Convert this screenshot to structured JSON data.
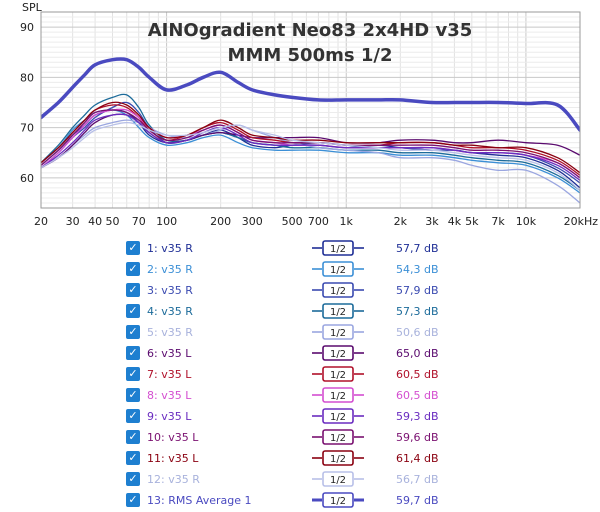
{
  "chart_data": {
    "type": "line",
    "title": "AINOgradient Neo83 2x4HD v35",
    "subtitle": "MMM 500ms 1/2",
    "ylabel": "SPL",
    "xlabel": "",
    "x_scale": "log",
    "xlim": [
      20,
      20000
    ],
    "ylim": [
      54,
      93
    ],
    "grid": true,
    "x_ticks": [
      {
        "v": 20,
        "t": "20"
      },
      {
        "v": 30,
        "t": "30"
      },
      {
        "v": 40,
        "t": "40"
      },
      {
        "v": 50,
        "t": "50"
      },
      {
        "v": 70,
        "t": "70"
      },
      {
        "v": 100,
        "t": "100"
      },
      {
        "v": 200,
        "t": "200"
      },
      {
        "v": 300,
        "t": "300"
      },
      {
        "v": 500,
        "t": "500"
      },
      {
        "v": 700,
        "t": "700"
      },
      {
        "v": 1000,
        "t": "1k"
      },
      {
        "v": 2000,
        "t": "2k"
      },
      {
        "v": 3000,
        "t": "3k"
      },
      {
        "v": 4000,
        "t": "4k"
      },
      {
        "v": 5000,
        "t": "5k"
      },
      {
        "v": 7000,
        "t": "7k"
      },
      {
        "v": 10000,
        "t": "10k"
      },
      {
        "v": 20000,
        "t": "20kHz"
      }
    ],
    "y_ticks": [
      {
        "v": 60,
        "t": "60"
      },
      {
        "v": 70,
        "t": "70"
      },
      {
        "v": 80,
        "t": "80"
      },
      {
        "v": 90,
        "t": "90"
      }
    ],
    "x": [
      20,
      25,
      30,
      35,
      40,
      50,
      60,
      70,
      80,
      100,
      130,
      160,
      200,
      250,
      300,
      400,
      500,
      700,
      1000,
      1500,
      2000,
      3000,
      4000,
      5000,
      7000,
      10000,
      15000,
      20000
    ],
    "series": [
      {
        "name": "1: v35 R",
        "value": "57,7 dB",
        "color": "#1f2f96",
        "width": 1.3,
        "muted": false,
        "values": [
          62.5,
          65.5,
          68.5,
          70.5,
          72.5,
          73.5,
          73,
          71,
          68.5,
          67,
          67.5,
          68.5,
          69.5,
          68,
          66.5,
          66,
          66.5,
          66.5,
          66,
          66.5,
          66,
          65.5,
          65.5,
          65,
          64.5,
          64,
          61.5,
          58
        ]
      },
      {
        "name": "2: v35 R",
        "value": "54,3 dB",
        "color": "#3b8fd6",
        "width": 1.3,
        "muted": false,
        "values": [
          63,
          66,
          69.5,
          71.5,
          73,
          73.5,
          72.5,
          70,
          68,
          66.5,
          67,
          68,
          68.5,
          67,
          66,
          65.5,
          65.5,
          65.5,
          65,
          65,
          64.5,
          64.5,
          64,
          63.5,
          63,
          62.5,
          60,
          57
        ]
      },
      {
        "name": "3: v35 R",
        "value": "57,9 dB",
        "color": "#3a4ab0",
        "width": 1.3,
        "muted": false,
        "values": [
          62,
          65,
          68,
          70,
          72,
          74,
          75,
          73,
          70,
          67,
          67.5,
          68.5,
          69,
          68,
          67,
          66.5,
          66.5,
          67,
          66.5,
          66,
          66,
          65.5,
          65.5,
          65,
          65,
          64.5,
          62,
          59
        ]
      },
      {
        "name": "4: v35 R",
        "value": "57,3 dB",
        "color": "#1c6b9a",
        "width": 1.3,
        "muted": false,
        "values": [
          63,
          66.5,
          70,
          72.5,
          74.5,
          76,
          76.5,
          74,
          70.5,
          67.5,
          67.5,
          68.5,
          69,
          68,
          67,
          66.5,
          66,
          66,
          65.5,
          65.5,
          65,
          65,
          64.5,
          64,
          63.5,
          63,
          60.5,
          57.5
        ]
      },
      {
        "name": "5: v35 R",
        "value": "50,6 dB",
        "color": "#9aa6e0",
        "width": 1.3,
        "muted": true,
        "values": [
          62,
          64,
          66.5,
          68.5,
          70,
          71,
          71.5,
          71,
          70,
          68.5,
          68,
          68.5,
          69.5,
          70.5,
          69.5,
          68,
          67,
          66,
          65.5,
          65,
          64,
          64,
          63.5,
          62.5,
          61.5,
          61.5,
          58.5,
          55
        ]
      },
      {
        "name": "6: v35 L",
        "value": "65,0 dB",
        "color": "#5a0a6e",
        "width": 1.3,
        "muted": false,
        "values": [
          62,
          64,
          66.5,
          69,
          71,
          72.5,
          72.5,
          71,
          69,
          67,
          67.5,
          68.5,
          69,
          68.5,
          68,
          68,
          68,
          68,
          67,
          67,
          67.5,
          67.5,
          67,
          67,
          67.5,
          67,
          66.5,
          64.5
        ]
      },
      {
        "name": "7: v35 L",
        "value": "60,5 dB",
        "color": "#b0102a",
        "width": 1.3,
        "muted": false,
        "values": [
          63,
          66,
          69,
          71.5,
          73.5,
          74.5,
          74,
          72,
          69.5,
          67.5,
          68.5,
          70,
          71,
          69.5,
          68,
          67.5,
          67,
          67,
          66.5,
          66.5,
          67,
          67,
          66.5,
          66,
          66,
          65.5,
          63.5,
          60.5
        ]
      },
      {
        "name": "8: v35 L",
        "value": "60,5 dB",
        "color": "#d44ed0",
        "width": 1.3,
        "muted": false,
        "values": [
          62,
          65,
          68,
          70.5,
          72.5,
          73.5,
          73.5,
          72,
          70,
          68,
          68.5,
          69.5,
          70.5,
          69,
          67.5,
          67,
          66.5,
          66.5,
          66,
          66,
          66,
          66,
          65.5,
          65,
          65,
          64.5,
          63,
          60
        ]
      },
      {
        "name": "9: v35 L",
        "value": "59,3 dB",
        "color": "#6a2cc0",
        "width": 1.3,
        "muted": false,
        "values": [
          62,
          64.5,
          67,
          69.5,
          71.5,
          72.5,
          72.5,
          71,
          69,
          67,
          67.5,
          69,
          70,
          68.5,
          67,
          66.5,
          66.5,
          66.5,
          66,
          66,
          66,
          66,
          65.5,
          65,
          65,
          64.5,
          62.5,
          59.5
        ]
      },
      {
        "name": "10: v35 L",
        "value": "59,6 dB",
        "color": "#7a1070",
        "width": 1.3,
        "muted": false,
        "values": [
          62.5,
          65.5,
          68.5,
          71,
          73,
          73.5,
          73,
          71.5,
          69.5,
          67.5,
          68,
          69.5,
          70.5,
          69,
          67.5,
          67,
          67,
          67,
          66.5,
          66.5,
          66.5,
          66.5,
          66,
          65.5,
          65.5,
          65,
          63,
          60
        ]
      },
      {
        "name": "11: v35 L",
        "value": "61,4 dB",
        "color": "#8a0010",
        "width": 1.3,
        "muted": false,
        "values": [
          63,
          66,
          69,
          71.5,
          73.5,
          75,
          74.5,
          72.5,
          70,
          68,
          68.5,
          70,
          71.5,
          70,
          68.5,
          68,
          67.5,
          67.5,
          67,
          67,
          67,
          67,
          66.5,
          66.5,
          66,
          66,
          64,
          61
        ]
      },
      {
        "name": "12: v35 R",
        "value": "56,7 dB",
        "color": "#b8c0e8",
        "width": 1.3,
        "muted": true,
        "values": [
          62,
          64,
          66,
          68,
          69.5,
          70.5,
          71,
          70.5,
          69.5,
          68.5,
          68.5,
          69,
          70,
          70.5,
          69.5,
          68.5,
          67.5,
          67,
          66.5,
          66,
          65.5,
          65.5,
          65,
          64.5,
          64,
          63.5,
          61,
          57.5
        ]
      },
      {
        "name": "13: RMS Average 1",
        "value": "59,7 dB",
        "color": "#4a4ac0",
        "width": 3.5,
        "muted": false,
        "values": [
          72,
          75,
          78,
          80.5,
          82.5,
          83.5,
          83.5,
          82,
          80,
          77.5,
          78.5,
          80,
          81,
          79,
          77.5,
          76.5,
          76,
          75.5,
          75.5,
          75.5,
          75.5,
          75,
          75,
          75,
          75,
          74.8,
          74.5,
          69.5
        ]
      }
    ]
  },
  "legend": {
    "smoothing_label": "1/2"
  }
}
